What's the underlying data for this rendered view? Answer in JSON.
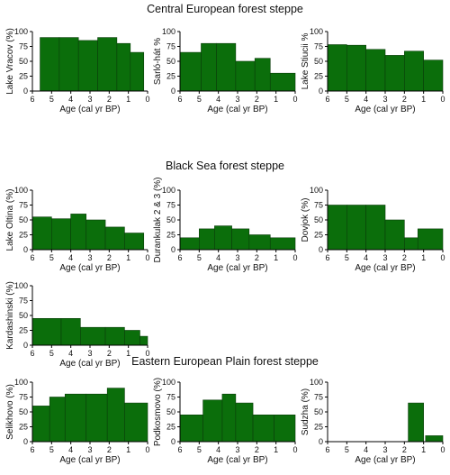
{
  "sections": [
    {
      "title": "Central European forest steppe"
    },
    {
      "title": "Black Sea forest steppe"
    },
    {
      "title": "Eastern European Plain forest steppe"
    }
  ],
  "chart_data": [
    {
      "type": "bar",
      "section": 0,
      "ylabel": "Lake Vracov (%)",
      "xlabel": "Age (cal yr BP)",
      "xlim": [
        6,
        0
      ],
      "ylim": [
        0,
        100
      ],
      "xticks": [
        6,
        5,
        4,
        3,
        2,
        1,
        0
      ],
      "yticks": [
        0,
        25,
        50,
        75,
        100
      ],
      "bins": [
        [
          5.6,
          4.6
        ],
        [
          4.6,
          3.6
        ],
        [
          3.6,
          2.6
        ],
        [
          2.6,
          1.6
        ],
        [
          1.6,
          0.9
        ],
        [
          0.9,
          0.2
        ]
      ],
      "values": [
        90,
        90,
        85,
        90,
        80,
        65
      ],
      "color": "#0b6e0b"
    },
    {
      "type": "bar",
      "section": 0,
      "ylabel": "Sarló-hát %",
      "xlabel": "Age (cal yr BP)",
      "xlim": [
        6,
        0
      ],
      "ylim": [
        0,
        100
      ],
      "xticks": [
        6,
        5,
        4,
        3,
        2,
        1,
        0
      ],
      "yticks": [
        0,
        25,
        50,
        75,
        100
      ],
      "bins": [
        [
          6,
          4.9
        ],
        [
          4.9,
          4.1
        ],
        [
          4.1,
          3.1
        ],
        [
          3.1,
          2.1
        ],
        [
          2.1,
          1.3
        ],
        [
          1.3,
          0
        ]
      ],
      "values": [
        65,
        80,
        80,
        50,
        55,
        30
      ],
      "color": "#0b6e0b"
    },
    {
      "type": "bar",
      "section": 0,
      "ylabel": "Lake Stiucii %",
      "xlabel": "Age (cal yr BP)",
      "xlim": [
        6,
        0
      ],
      "ylim": [
        0,
        100
      ],
      "xticks": [
        6,
        5,
        4,
        3,
        2,
        1,
        0
      ],
      "yticks": [
        0,
        25,
        50,
        75,
        100
      ],
      "bins": [
        [
          6,
          5
        ],
        [
          5,
          4
        ],
        [
          4,
          3
        ],
        [
          3,
          2
        ],
        [
          2,
          1
        ],
        [
          1,
          0
        ]
      ],
      "values": [
        78,
        77,
        70,
        60,
        67,
        52
      ],
      "color": "#0b6e0b"
    },
    {
      "type": "bar",
      "section": 1,
      "ylabel": "Lake Oltina (%)",
      "xlabel": "Age (cal yr BP)",
      "xlim": [
        6,
        0
      ],
      "ylim": [
        0,
        100
      ],
      "xticks": [
        6,
        5,
        4,
        3,
        2,
        1,
        0
      ],
      "yticks": [
        0,
        25,
        50,
        75,
        100
      ],
      "bins": [
        [
          6,
          5
        ],
        [
          5,
          4
        ],
        [
          4,
          3.2
        ],
        [
          3.2,
          2.2
        ],
        [
          2.2,
          1.2
        ],
        [
          1.2,
          0.2
        ]
      ],
      "values": [
        55,
        52,
        60,
        50,
        38,
        28
      ],
      "color": "#0b6e0b"
    },
    {
      "type": "bar",
      "section": 1,
      "ylabel": "Durankulak 2 & 3 (%)",
      "xlabel": "Age (cal yr BP)",
      "xlim": [
        6,
        0
      ],
      "ylim": [
        0,
        100
      ],
      "xticks": [
        6,
        5,
        4,
        3,
        2,
        1,
        0
      ],
      "yticks": [
        0,
        25,
        50,
        75,
        100
      ],
      "bins": [
        [
          6,
          5
        ],
        [
          5,
          4.2
        ],
        [
          4.2,
          3.3
        ],
        [
          3.3,
          2.4
        ],
        [
          2.4,
          1.3
        ],
        [
          1.3,
          0
        ]
      ],
      "values": [
        20,
        35,
        40,
        35,
        25,
        20
      ],
      "color": "#0b6e0b"
    },
    {
      "type": "bar",
      "section": 1,
      "ylabel": "Dovjok (%)",
      "xlabel": "Age (cal yr BP)",
      "xlim": [
        6,
        0
      ],
      "ylim": [
        0,
        100
      ],
      "xticks": [
        6,
        5,
        4,
        3,
        2,
        1,
        0
      ],
      "yticks": [
        0,
        25,
        50,
        75,
        100
      ],
      "bins": [
        [
          6,
          5
        ],
        [
          5,
          4
        ],
        [
          4,
          3
        ],
        [
          3,
          2
        ],
        [
          2,
          1.3
        ],
        [
          1.3,
          0
        ]
      ],
      "values": [
        75,
        75,
        75,
        50,
        20,
        35
      ],
      "color": "#0b6e0b"
    },
    {
      "type": "bar",
      "section": 1,
      "ylabel": "Kardashinski (%)",
      "xlabel": "Age (cal yr BP)",
      "xlim": [
        6,
        0
      ],
      "ylim": [
        0,
        100
      ],
      "xticks": [
        6,
        5,
        4,
        3,
        2,
        1,
        0
      ],
      "yticks": [
        0,
        25,
        50,
        75,
        100
      ],
      "bins": [
        [
          6,
          4.5
        ],
        [
          4.5,
          3.5
        ],
        [
          3.5,
          2.2
        ],
        [
          2.2,
          1.2
        ],
        [
          1.2,
          0.4
        ],
        [
          0.4,
          0
        ]
      ],
      "values": [
        45,
        45,
        30,
        30,
        25,
        15
      ],
      "color": "#0b6e0b"
    },
    {
      "type": "bar",
      "section": 2,
      "ylabel": "Selikhovo (%)",
      "xlabel": "Age (cal yr BP)",
      "xlim": [
        6,
        0
      ],
      "ylim": [
        0,
        100
      ],
      "xticks": [
        6,
        5,
        4,
        3,
        2,
        1,
        0
      ],
      "yticks": [
        0,
        25,
        50,
        75,
        100
      ],
      "bins": [
        [
          6,
          5.1
        ],
        [
          5.1,
          4.3
        ],
        [
          4.3,
          3.2
        ],
        [
          3.2,
          2.1
        ],
        [
          2.1,
          1.2
        ],
        [
          1.2,
          0
        ]
      ],
      "values": [
        60,
        75,
        80,
        80,
        90,
        65
      ],
      "color": "#0b6e0b"
    },
    {
      "type": "bar",
      "section": 2,
      "ylabel": "Podkosmovo (%)",
      "xlabel": "Age (cal yr BP)",
      "xlim": [
        6,
        0
      ],
      "ylim": [
        0,
        100
      ],
      "xticks": [
        6,
        5,
        4,
        3,
        2,
        1,
        0
      ],
      "yticks": [
        0,
        25,
        50,
        75,
        100
      ],
      "bins": [
        [
          6,
          4.8
        ],
        [
          4.8,
          3.8
        ],
        [
          3.8,
          3.1
        ],
        [
          3.1,
          2.2
        ],
        [
          2.2,
          1.1
        ],
        [
          1.1,
          0
        ]
      ],
      "values": [
        45,
        70,
        80,
        65,
        45,
        45
      ],
      "color": "#0b6e0b"
    },
    {
      "type": "bar",
      "section": 2,
      "ylabel": "Sudzha (%)",
      "xlabel": "Age (cal yr BP)",
      "xlim": [
        6,
        0
      ],
      "ylim": [
        0,
        100
      ],
      "xticks": [
        6,
        5,
        4,
        3,
        2,
        1,
        0
      ],
      "yticks": [
        0,
        25,
        50,
        75,
        100
      ],
      "bins": [
        [
          1.8,
          1
        ],
        [
          0.9,
          0
        ]
      ],
      "values": [
        65,
        10
      ],
      "color": "#0b6e0b"
    }
  ]
}
